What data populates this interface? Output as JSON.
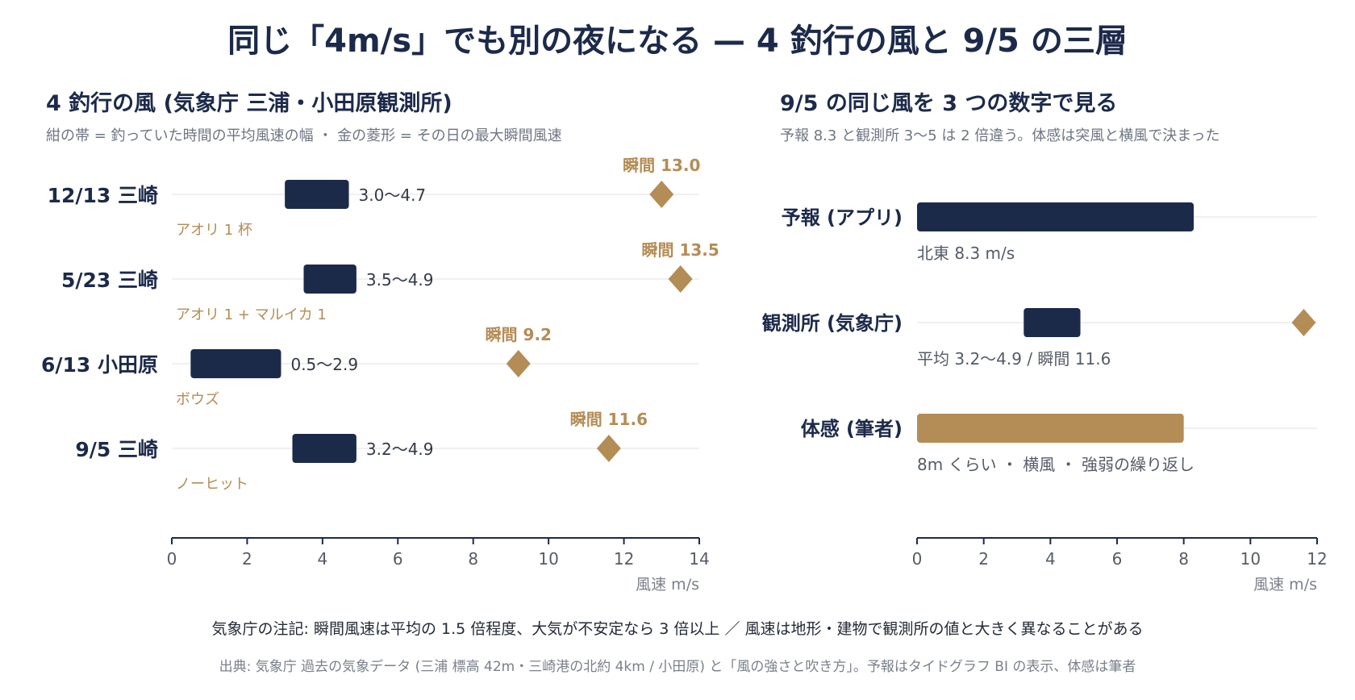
{
  "title": "同じ「4m/s」でも別の夜になる — 4 釣行の風と 9/5 の三層",
  "colors": {
    "navy": "#1c2a4a",
    "gold": "#b48c55",
    "grid": "#e6e6e6",
    "muted": "#7a808b"
  },
  "chart_data": [
    {
      "type": "range-dot",
      "title": "4 釣行の風 (気象庁 三浦・小田原観測所)",
      "subtitle": "紺の帯 = 釣っていた時間の平均風速の幅 ・ 金の菱形 = その日の最大瞬間風速",
      "xlabel": "風速 m/s",
      "xlim": [
        0,
        14
      ],
      "xticks": [
        "0",
        "2",
        "4",
        "6",
        "8",
        "10",
        "12",
        "14"
      ],
      "rows": [
        {
          "label": "12/13 三崎",
          "range": [
            3.0,
            4.7
          ],
          "range_label": "3.0〜4.7",
          "gust": 13.0,
          "gust_label": "瞬間 13.0",
          "catch": "アオリ 1 杯"
        },
        {
          "label": "5/23 三崎",
          "range": [
            3.5,
            4.9
          ],
          "range_label": "3.5〜4.9",
          "gust": 13.5,
          "gust_label": "瞬間 13.5",
          "catch": "アオリ 1 + マルイカ 1"
        },
        {
          "label": "6/13 小田原",
          "range": [
            0.5,
            2.9
          ],
          "range_label": "0.5〜2.9",
          "gust": 9.2,
          "gust_label": "瞬間 9.2",
          "catch": "ボウズ"
        },
        {
          "label": "9/5 三崎",
          "range": [
            3.2,
            4.9
          ],
          "range_label": "3.2〜4.9",
          "gust": 11.6,
          "gust_label": "瞬間 11.6",
          "catch": "ノーヒット"
        }
      ]
    },
    {
      "type": "bar",
      "title": "9/5 の同じ風を 3 つの数字で見る",
      "subtitle": "予報 8.3 と観測所 3〜5 は 2 倍違う。体感は突風と横風で決まった",
      "xlabel": "風速 m/s",
      "xlim": [
        0,
        12
      ],
      "xticks": [
        "0",
        "2",
        "4",
        "6",
        "8",
        "10",
        "12"
      ],
      "rows": [
        {
          "label": "予報 (アプリ)",
          "range": [
            0,
            8.3
          ],
          "note": "北東 8.3 m/s",
          "color": "#1c2a4a"
        },
        {
          "label": "観測所 (気象庁)",
          "range": [
            3.2,
            4.9
          ],
          "gust": 11.6,
          "note": "平均 3.2〜4.9 / 瞬間 11.6",
          "color": "#1c2a4a"
        },
        {
          "label": "体感 (筆者)",
          "range": [
            0,
            8
          ],
          "note": "8m くらい ・ 横風 ・ 強弱の繰り返し",
          "color": "#b48c55"
        }
      ]
    }
  ],
  "footer": {
    "note": "気象庁の注記: 瞬間風速は平均の 1.5 倍程度、大気が不安定なら 3 倍以上 ／ 風速は地形・建物で観測所の値と大きく異なることがある",
    "source": "出典: 気象庁 過去の気象データ (三浦 標高 42m・三崎港の北約 4km / 小田原) と「風の強さと吹き方」。予報はタイドグラフ BI の表示、体感は筆者"
  }
}
